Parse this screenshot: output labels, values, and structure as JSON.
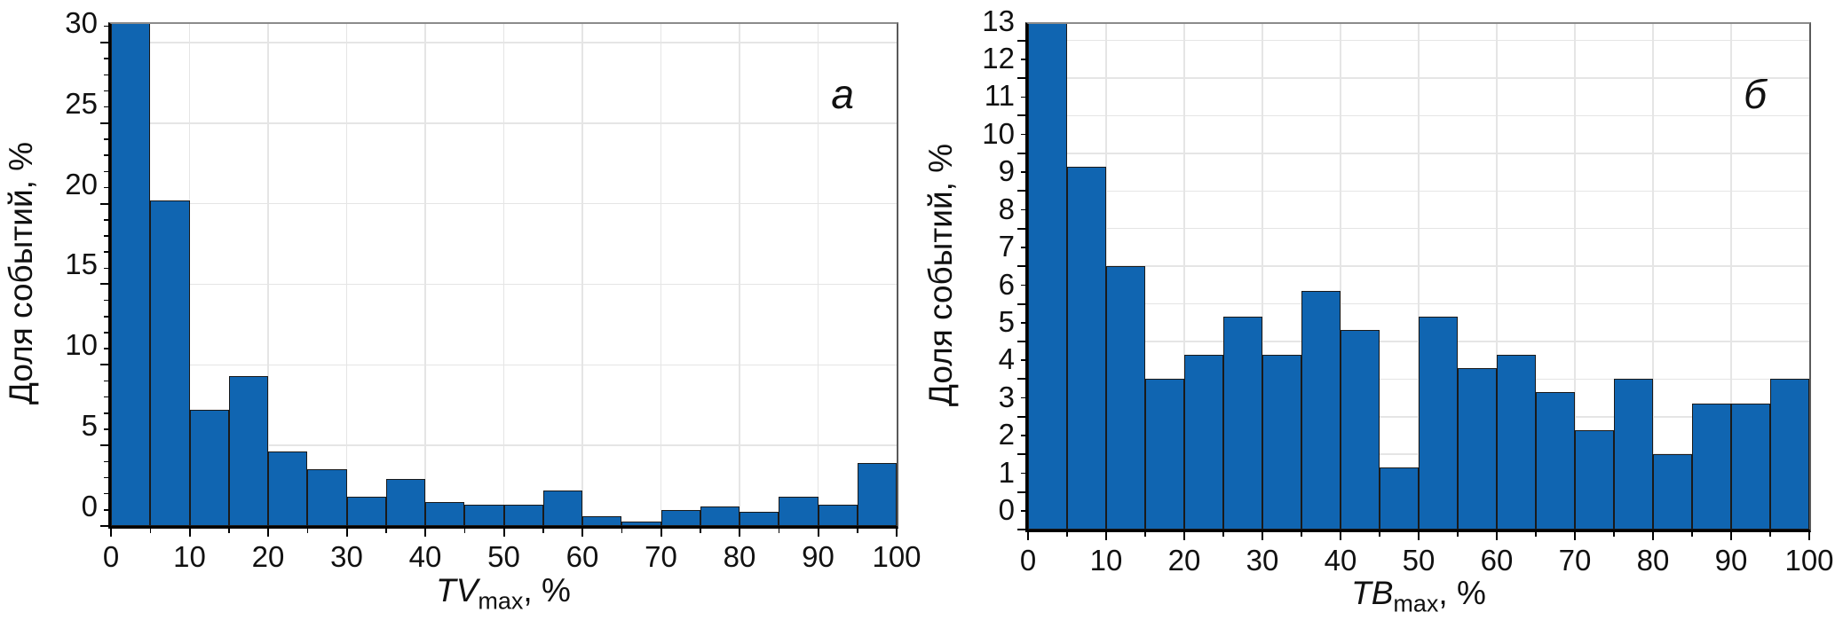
{
  "colors": {
    "bar_fill": "#1065b1",
    "bar_edge": "#1a1a1a",
    "grid": "#e5e5e5",
    "axis": "#000000",
    "frame_top": "#8b8b8b"
  },
  "chart_data": [
    {
      "type": "bar",
      "subtype": "histogram",
      "panel_label": "a",
      "ylabel": "Доля событий, %",
      "xlabel": {
        "italic": "TV",
        "sub": "max",
        "rest": ", %"
      },
      "bin_start": 0,
      "bin_width": 5,
      "values": [
        31.2,
        20.2,
        7.2,
        9.3,
        4.6,
        3.5,
        1.8,
        2.9,
        1.5,
        1.3,
        1.3,
        2.2,
        0.6,
        0.3,
        1.0,
        1.2,
        0.9,
        1.8,
        1.3,
        3.9
      ],
      "xlim": [
        0,
        100
      ],
      "ylim": [
        0,
        31.15
      ],
      "x_ticks": [
        0,
        10,
        20,
        30,
        40,
        50,
        60,
        70,
        80,
        90,
        100
      ],
      "x_minor_step": 5,
      "y_ticks": [
        0,
        5,
        10,
        15,
        20,
        25,
        30
      ],
      "y_minor_step": 1,
      "grid": true,
      "note": "first bar (0-5%) is clipped at the top of the plot area"
    },
    {
      "type": "bar",
      "subtype": "histogram",
      "panel_label": "б",
      "ylabel": "Доля событий, %",
      "xlabel": {
        "italic": "TB",
        "sub": "max",
        "rest": ", %"
      },
      "bin_start": 0,
      "bin_width": 5,
      "values": [
        13.45,
        9.65,
        7.0,
        4.0,
        4.65,
        5.65,
        4.65,
        6.35,
        5.3,
        1.65,
        5.65,
        4.3,
        4.65,
        3.65,
        2.65,
        4.0,
        2.0,
        3.35,
        3.35,
        4.0
      ],
      "xlim": [
        0,
        100
      ],
      "ylim": [
        0,
        13.44
      ],
      "x_ticks": [
        0,
        10,
        20,
        30,
        40,
        50,
        60,
        70,
        80,
        90,
        100
      ],
      "x_minor_step": 5,
      "y_ticks": [
        0,
        1,
        2,
        3,
        4,
        5,
        6,
        7,
        8,
        9,
        10,
        11,
        12,
        13
      ],
      "y_minor_step": 0.5,
      "grid": true,
      "note": "first bar (0-5%) is clipped at the top of the plot area"
    }
  ]
}
